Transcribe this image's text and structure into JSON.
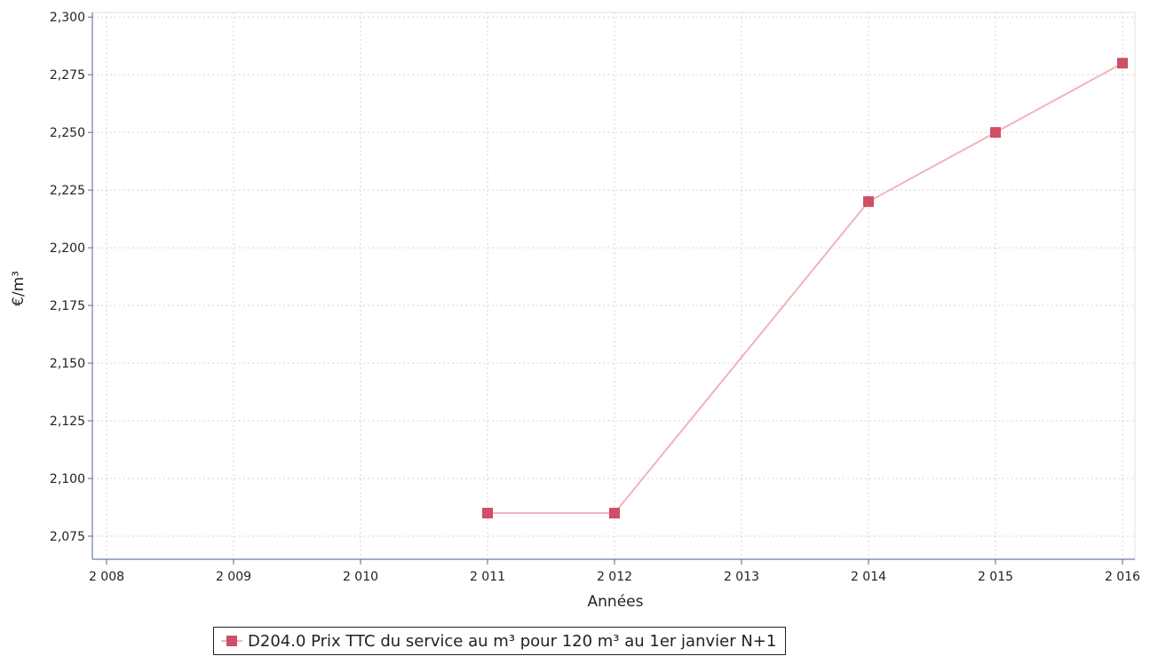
{
  "chart_data": {
    "type": "line",
    "xlabel": "Années",
    "ylabel": "€/m³",
    "x_ticks": [
      "2 008",
      "2 009",
      "2 010",
      "2 011",
      "2 012",
      "2 013",
      "2 014",
      "2 015",
      "2 016"
    ],
    "y_ticks": [
      "2,075",
      "2,100",
      "2,125",
      "2,150",
      "2,175",
      "2,200",
      "2,225",
      "2,250",
      "2,275",
      "2,300"
    ],
    "xlim": [
      2008,
      2016
    ],
    "ylim": [
      2.065,
      2.302
    ],
    "grid": true,
    "legend_position": "bottom-center",
    "series": [
      {
        "name": "D204.0 Prix TTC du service au m³ pour 120 m³ au 1er janvier N+1",
        "color": "#cf4f66",
        "line_color": "#f2b3b9",
        "marker": "square",
        "x": [
          2011,
          2012,
          2014,
          2015,
          2016
        ],
        "y": [
          2.085,
          2.085,
          2.22,
          2.25,
          2.28
        ]
      }
    ]
  }
}
